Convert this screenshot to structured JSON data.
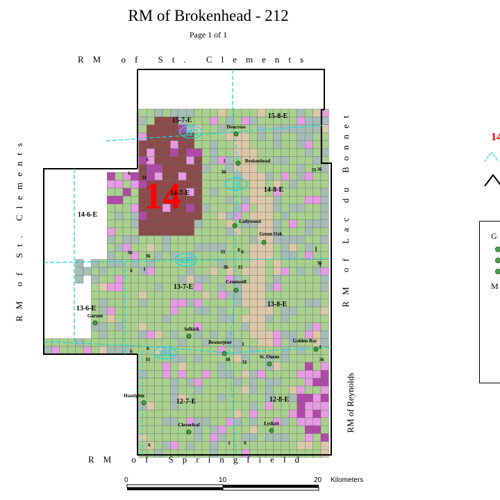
{
  "map": {
    "title": "RM of Brokenhead - 212",
    "subtitle": "Page 1 of 1",
    "bigLabel": "14",
    "borders": {
      "top": "RM of St. Clements",
      "left": "RM of St. Clements",
      "right": "RM of Lac du Bonnet",
      "bottom": "RM of Springfield",
      "southeast": "RM of Reynolds"
    },
    "townships": [
      "15-7-E",
      "15-8-E",
      "14-6-E",
      "14-7-E",
      "14-8-E",
      "13-6-E",
      "13-7-E",
      "13-8-E",
      "12-7-E",
      "12-8-E"
    ],
    "places": [
      "Dencross",
      "Brokenhead",
      "Ladywood",
      "Green Oak",
      "Cromwell",
      "Garson",
      "Selkirk",
      "Beausejour",
      "Golden Bay",
      "St. Ouens",
      "Hazelglen",
      "Cloverleaf",
      "Lydiatt"
    ],
    "highways": [
      "317",
      "12",
      "435",
      "215"
    ],
    "sectionNumbers": [
      "6",
      "1",
      "36",
      "31",
      "6",
      "1",
      "36",
      "31",
      "36",
      "1",
      "6",
      "1",
      "6",
      "31",
      "36",
      "1",
      "6",
      "36",
      "31",
      "1",
      "6",
      "36",
      "31",
      "6",
      "1",
      "36",
      "31",
      "1",
      "36",
      "6",
      "1",
      "6"
    ]
  },
  "scale": {
    "labels": [
      "0",
      "10",
      "20"
    ],
    "units": "Kilometers"
  },
  "legend": {
    "bigLabel": "14",
    "group_label": "G",
    "misc_label": "M"
  },
  "colors": {
    "agri": "#a9d18e",
    "grey": "#a6bcb7",
    "tan": "#dcc8a8",
    "darkred": "#8c4a4a",
    "magenta": "#b248a8",
    "pink": "#e79be4",
    "highway": "#1fd6d6",
    "red": "#ff0000"
  }
}
